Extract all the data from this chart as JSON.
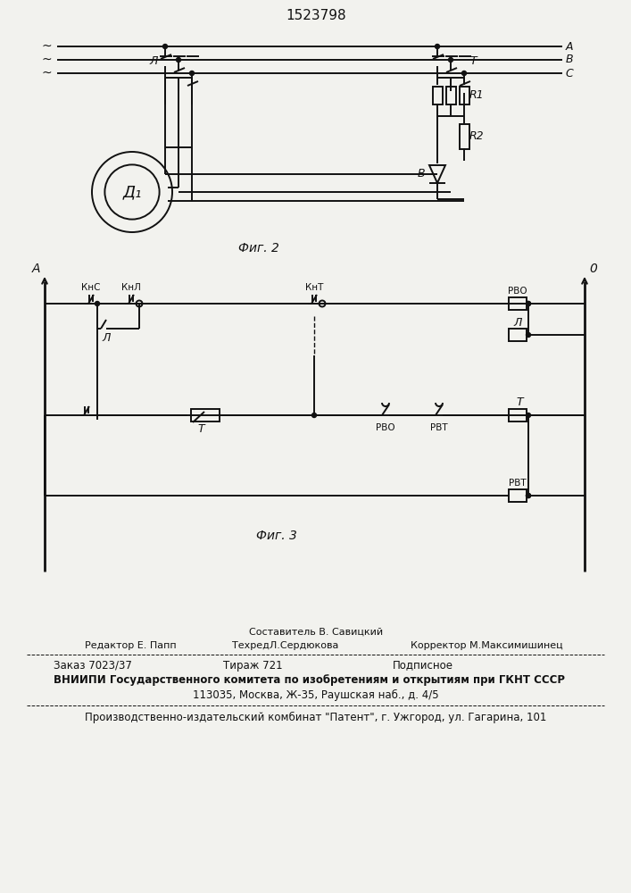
{
  "title": "1523798",
  "fig2_label": "Фиг. 2",
  "fig3_label": "Фиг. 3",
  "bg_color": "#f2f2ee",
  "line_color": "#111111",
  "text_color": "#111111",
  "footer": {
    "sestavitel": "Составитель В. Савицкий",
    "redaktor": "Редактор Е. Папп",
    "tehred": "ТехредЛ.Сердюкова",
    "korrektor": "Корректор М.Максимишинец",
    "zakaz": "Заказ 7023/37",
    "tirazh": "Тираж 721",
    "podpisnoe": "Подписное",
    "vniip1": "ВНИИПИ Государственного комитета по изобретениям и открытиям при ГКНТ СССР",
    "vniip2": "113035, Москва, Ж-35, Раушская наб., д. 4/5",
    "proizv": "Производственно-издательский комбинат \"Патент\", г. Ужгород, ул. Гагарина, 101"
  }
}
